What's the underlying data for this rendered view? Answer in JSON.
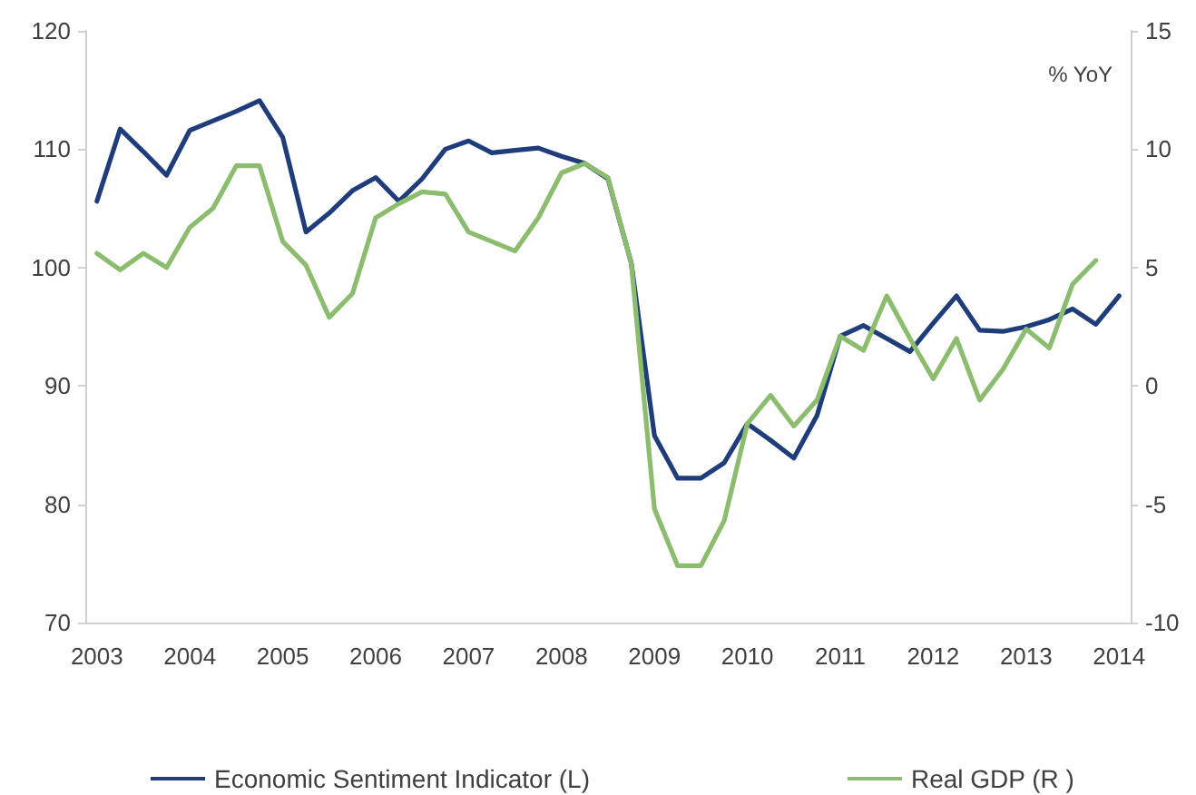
{
  "chart_data": {
    "type": "line",
    "categories": [
      "2003",
      null,
      null,
      null,
      "2004",
      null,
      null,
      null,
      "2005",
      null,
      null,
      null,
      "2006",
      null,
      null,
      null,
      "2007",
      null,
      null,
      null,
      "2008",
      null,
      null,
      null,
      "2009",
      null,
      null,
      null,
      "2010",
      null,
      null,
      null,
      "2011",
      null,
      null,
      null,
      "2012",
      null,
      null,
      null,
      "2013",
      null,
      null,
      null,
      "2014"
    ],
    "series": [
      {
        "name": "Economic Sentiment Indicator (L)",
        "color": "#1f3d7a",
        "values": [
          105.6,
          111.7,
          109.8,
          107.8,
          111.6,
          112.4,
          113.2,
          114.1,
          111.0,
          103.0,
          104.6,
          106.5,
          107.6,
          105.6,
          107.5,
          110.0,
          110.7,
          109.7,
          109.9,
          110.1,
          109.4,
          108.8,
          107.5,
          100.4,
          85.8,
          82.2,
          82.2,
          83.5,
          86.8,
          85.4,
          83.9,
          87.5,
          94.2,
          95.1,
          94.0,
          92.9,
          95.3,
          97.6,
          94.7,
          94.6,
          95.0,
          95.6,
          96.5,
          95.2,
          97.6
        ]
      },
      {
        "name": "Real GDP (R )",
        "color": "#8cbd6e",
        "axis": "y2",
        "values": [
          5.6,
          4.9,
          5.6,
          5.0,
          6.7,
          7.5,
          9.3,
          9.3,
          6.1,
          5.1,
          2.9,
          3.9,
          7.1,
          7.7,
          8.2,
          8.1,
          6.5,
          6.1,
          5.7,
          7.1,
          9.0,
          9.4,
          8.8,
          5.2,
          -5.2,
          -7.6,
          -7.6,
          -5.7,
          -1.6,
          -0.4,
          -1.7,
          -0.6,
          2.1,
          1.5,
          3.8,
          2.0,
          0.3,
          2.0,
          -0.6,
          0.7,
          2.4,
          1.6,
          4.3,
          5.3,
          null
        ]
      }
    ],
    "ylim": [
      70,
      120
    ],
    "yticks": [
      70,
      80,
      90,
      100,
      110,
      120
    ],
    "y2lim": [
      -10,
      15
    ],
    "y2ticks": [
      -10,
      -5,
      0,
      5,
      10,
      15
    ],
    "y2label": "% YoY",
    "legend": "bottom",
    "grid": false,
    "marker": "none",
    "line_style": "solid"
  }
}
